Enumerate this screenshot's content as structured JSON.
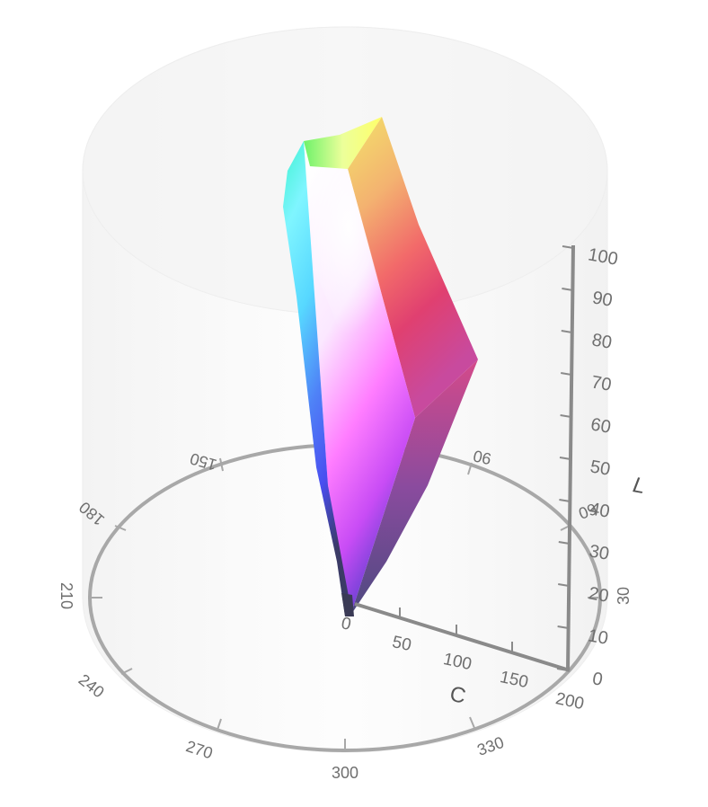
{
  "colors": {
    "ring": "#a8a8a8",
    "axis": "#8a8a8a",
    "tick_text": "#6f6f6f",
    "cylinder": "#f2f2f2"
  },
  "l_axis": {
    "title": "L",
    "ticks": [
      "100",
      "90",
      "80",
      "70",
      "60",
      "50",
      "40",
      "30",
      "20",
      "10",
      "0"
    ]
  },
  "c_axis": {
    "title": "C",
    "ticks": [
      "0",
      "50",
      "100",
      "150",
      "200"
    ]
  },
  "hue_ring": {
    "labels": [
      "150",
      "90",
      "180",
      "60",
      "210",
      "30",
      "240",
      "270",
      "300",
      "330"
    ]
  },
  "gamut": {
    "corners": [
      "red-vertex",
      "yellow-vertex",
      "green-vertex",
      "cyan-vertex",
      "blue-vertex",
      "magenta-vertex",
      "white-vertex",
      "black-vertex"
    ]
  }
}
